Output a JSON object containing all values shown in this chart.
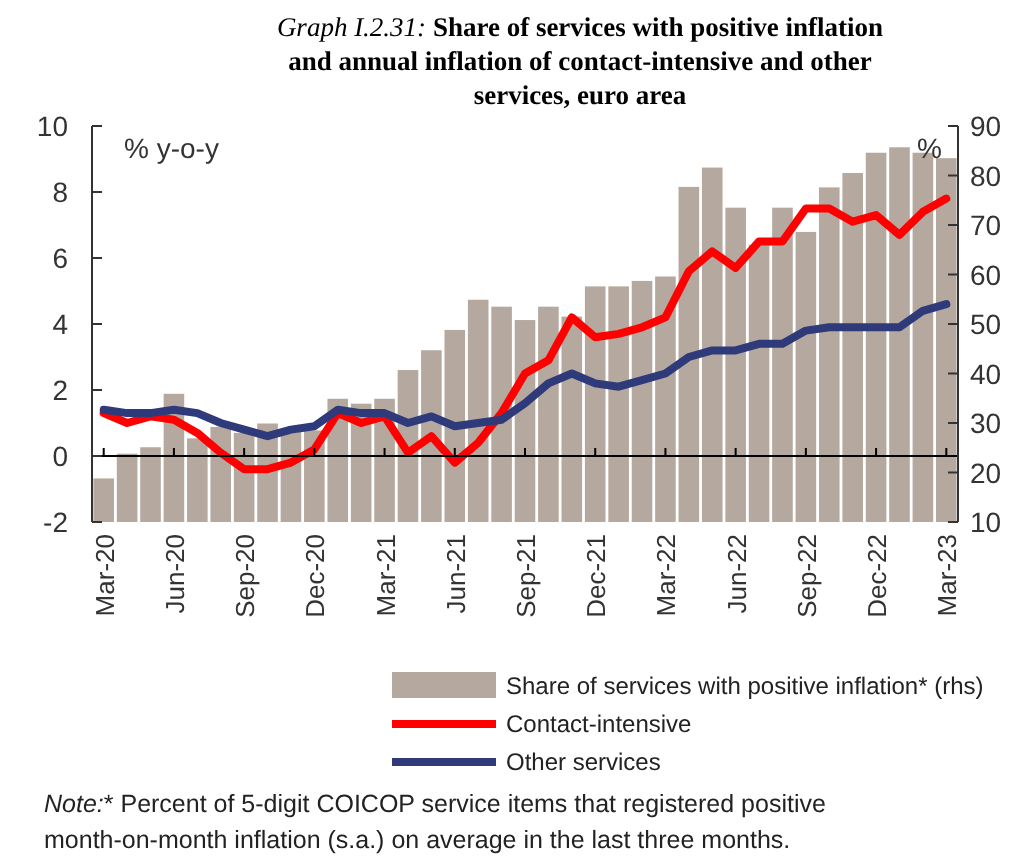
{
  "chart_data": {
    "type": "bar",
    "title": "Graph I.2.31: Share of services with positive inflation and annual inflation of contact-intensive and other services, euro area",
    "ylabel": "% y-o-y",
    "y2label": "%",
    "categories": [
      "Mar-20",
      null,
      null,
      "Jun-20",
      null,
      null,
      "Sep-20",
      null,
      null,
      "Dec-20",
      null,
      null,
      "Mar-21",
      null,
      null,
      "Jun-21",
      null,
      null,
      "Sep-21",
      null,
      null,
      "Dec-21",
      null,
      null,
      "Mar-22",
      null,
      null,
      "Jun-22",
      null,
      null,
      "Sep-22",
      null,
      null,
      "Dec-22",
      null,
      null,
      "Mar-23"
    ],
    "series": [
      {
        "name": "Share of services with positive inflation* (rhs)",
        "axis": "y2",
        "color": "#b5a89f",
        "values": [
          18.8,
          23.8,
          25.1,
          35.9,
          26.9,
          29.2,
          28,
          29.9,
          28.5,
          28.5,
          34.9,
          33.9,
          34.9,
          40.7,
          44.7,
          48.8,
          54.9,
          53.5,
          50.8,
          53.5,
          51.5,
          57.6,
          57.6,
          58.7,
          59.6,
          77.7,
          81.6,
          73.5,
          66,
          73.5,
          68.6,
          77.6,
          80.5,
          84.6,
          85.7,
          84.6,
          83.5
        ]
      },
      {
        "name": "Contact-intensive",
        "type": "line",
        "color": "#ff0000",
        "values": [
          1.3,
          1.0,
          1.2,
          1.1,
          0.7,
          0.1,
          -0.4,
          -0.4,
          -0.2,
          0.2,
          1.3,
          1.0,
          1.2,
          0.1,
          0.6,
          -0.2,
          0.4,
          1.3,
          2.5,
          2.9,
          4.2,
          3.6,
          3.7,
          3.9,
          4.2,
          5.6,
          6.2,
          5.7,
          6.5,
          6.5,
          7.5,
          7.5,
          7.1,
          7.3,
          6.7,
          7.4,
          7.8
        ]
      },
      {
        "name": "Other services",
        "type": "line",
        "color": "#2e3a7a",
        "values": [
          1.4,
          1.3,
          1.3,
          1.4,
          1.3,
          1.0,
          0.8,
          0.6,
          0.8,
          0.9,
          1.4,
          1.3,
          1.3,
          1.0,
          1.2,
          0.9,
          1.0,
          1.1,
          1.6,
          2.2,
          2.5,
          2.2,
          2.1,
          2.3,
          2.5,
          3.0,
          3.2,
          3.2,
          3.4,
          3.4,
          3.8,
          3.9,
          3.9,
          3.9,
          3.9,
          4.4,
          4.6
        ]
      }
    ],
    "ylim": [
      -2,
      10
    ],
    "yticks": [
      -2,
      0,
      2,
      4,
      6,
      8,
      10
    ],
    "y2lim": [
      10,
      90
    ],
    "y2ticks": [
      10,
      20,
      30,
      40,
      50,
      60,
      70,
      80,
      90
    ],
    "legend": "bottom",
    "marker": "none",
    "line_style": "solid",
    "annotations": [
      "Note:* Percent of 5-digit COICOP service items that registered positive month-on-month inflation (s.a.) on average in the last three months."
    ]
  }
}
